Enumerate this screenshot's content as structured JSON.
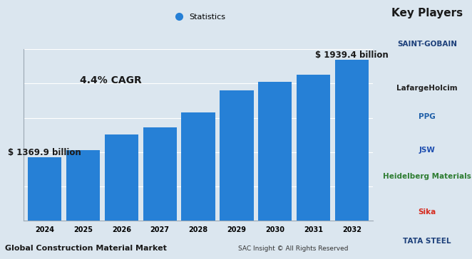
{
  "chart_data": {
    "type": "bar",
    "title": "Global Construction Material Market",
    "categories": [
      "2024",
      "2025",
      "2026",
      "2027",
      "2028",
      "2029",
      "2030",
      "2031",
      "2032"
    ],
    "series": [
      {
        "name": "Statistics",
        "color": "#2680d6",
        "values": [
          1369.9,
          1412.7,
          1501.0,
          1544.0,
          1633.0,
          1761.0,
          1808.0,
          1850.0,
          1939.4
        ],
        "value_labels": [
          "$ 1369.9 billion",
          null,
          null,
          null,
          null,
          null,
          null,
          null,
          "$ 1939.4 billion"
        ]
      }
    ],
    "ylim": [
      1000,
      2000
    ],
    "yticks": [
      1000,
      1200,
      1400,
      1600,
      1800,
      2000
    ],
    "grid": true,
    "legend": "upper center",
    "data_labels": true,
    "tick_labels": "x",
    "annotations": [
      "4.4% CAGR",
      "SAC Insight © All Rights Reserved"
    ]
  },
  "key_players": {
    "title": "Key Players",
    "names": [
      "SAINT-GOBAIN",
      "LafargeHolcim",
      "PPG",
      "JSW",
      "Heidelberg Materials",
      "Sika",
      "TATA STEEL"
    ]
  }
}
